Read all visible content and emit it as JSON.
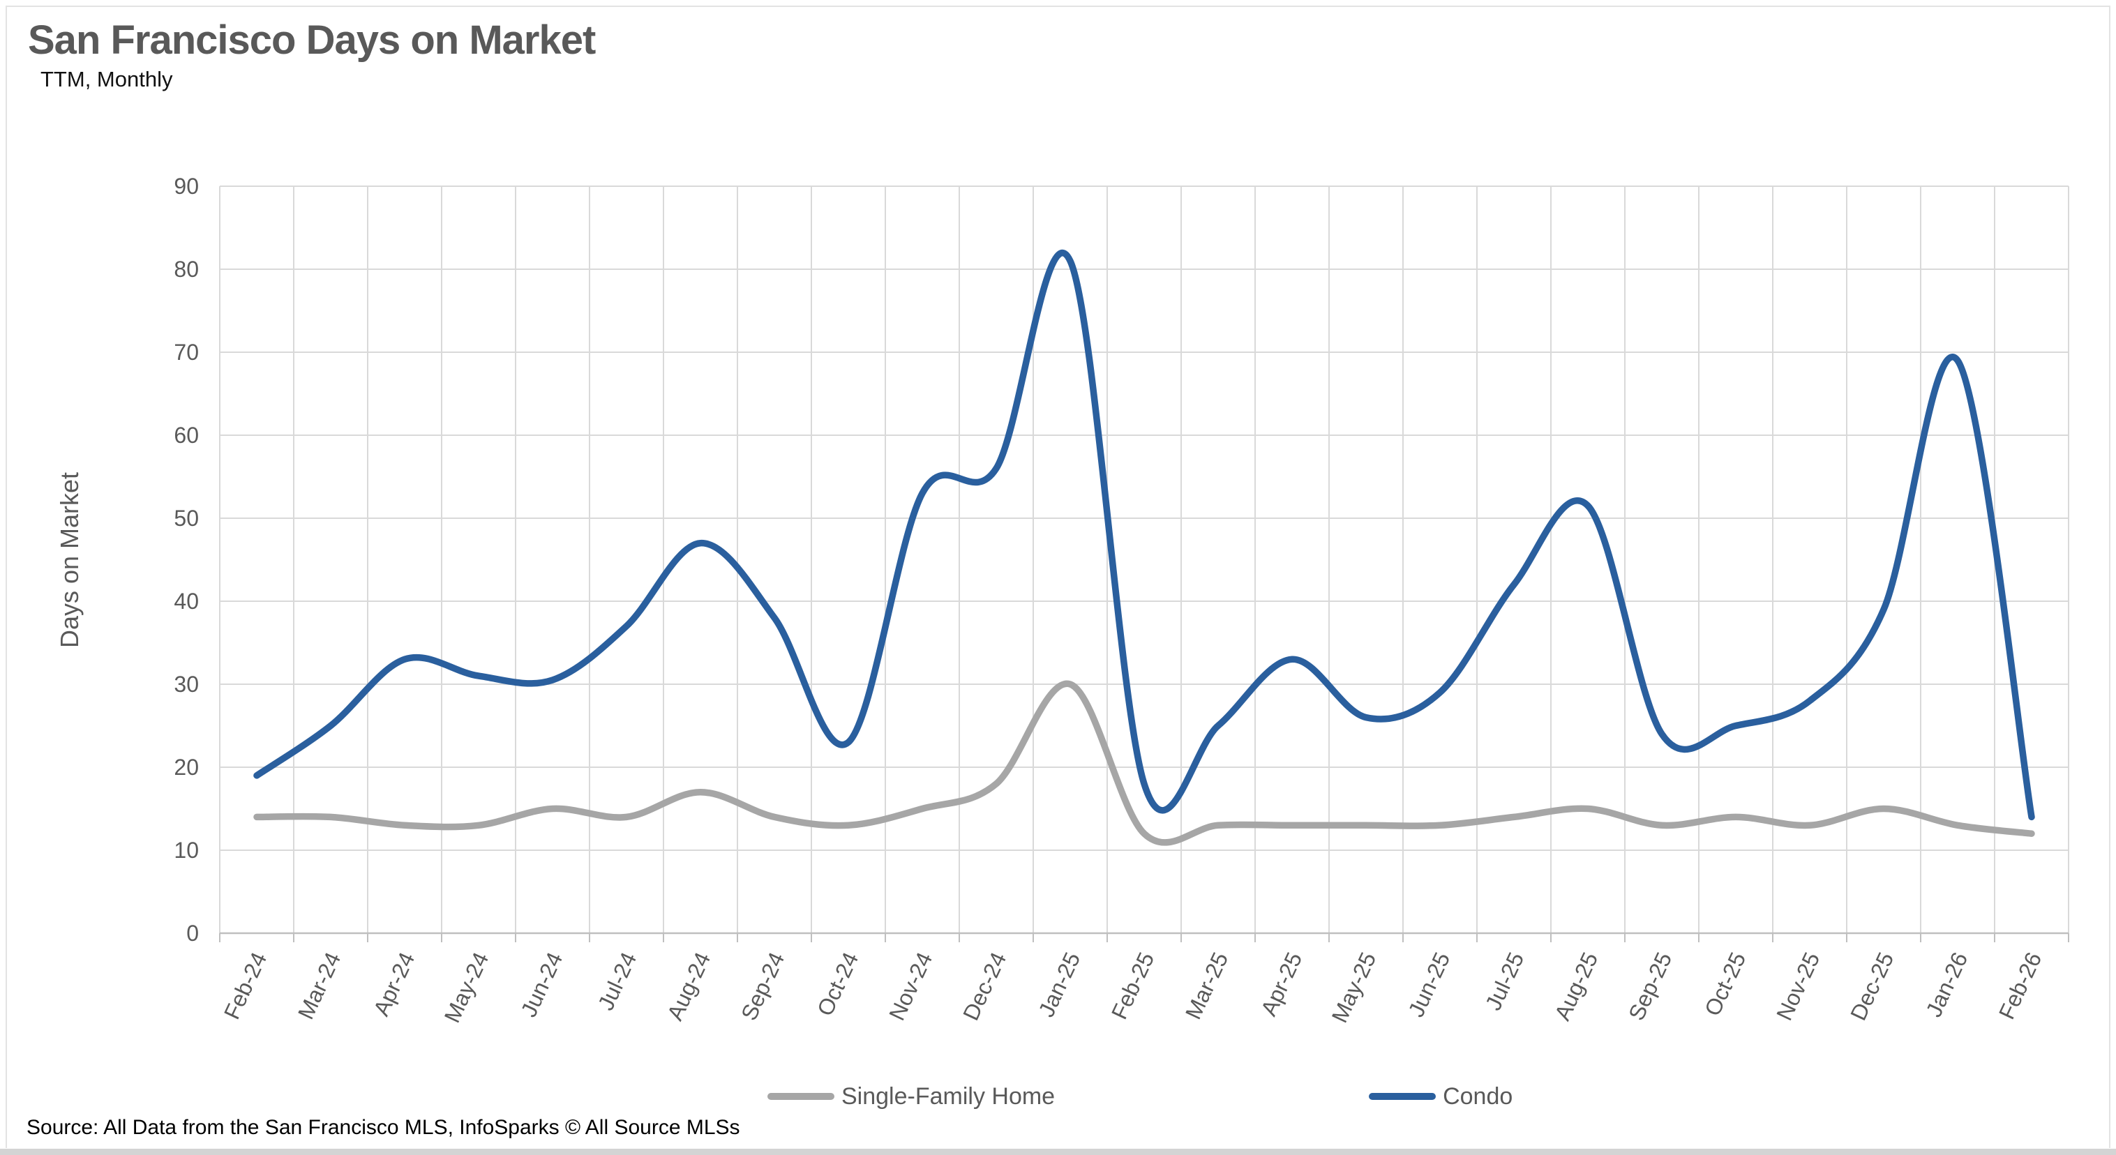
{
  "page": {
    "title": "San Francisco Days on Market",
    "subtitle": "TTM, Monthly",
    "source": "Source: All Data from the San Francisco MLS, InfoSparks © All Source MLSs"
  },
  "legend": {
    "items": [
      {
        "label": "Single-Family Home",
        "color": "#a6a6a6"
      },
      {
        "label": "Condo",
        "color": "#2a5f9e"
      }
    ]
  },
  "colors": {
    "condo_line": "#2a5f9e",
    "sfh_line": "#a6a6a6",
    "gridline": "#d9d9d9",
    "axis_line": "#bfbfbf",
    "axis_text": "#595959",
    "title_text": "#595959"
  },
  "chart_data": {
    "type": "line",
    "title": "San Francisco Days on Market",
    "subtitle": "TTM, Monthly",
    "xlabel": "",
    "ylabel": "Days on Market",
    "ylim": [
      0,
      90
    ],
    "ytick_interval": 10,
    "yticks": [
      0,
      10,
      20,
      30,
      40,
      50,
      60,
      70,
      80,
      90
    ],
    "grid": true,
    "legend_position": "bottom",
    "line_style": "smooth",
    "categories": [
      "Feb-24",
      "Mar-24",
      "Apr-24",
      "May-24",
      "Jun-24",
      "Jul-24",
      "Aug-24",
      "Sep-24",
      "Oct-24",
      "Nov-24",
      "Dec-24",
      "Jan-25",
      "Feb-25",
      "Mar-25",
      "Apr-25",
      "May-25",
      "Jun-25",
      "Jul-25",
      "Aug-25",
      "Sep-25",
      "Oct-25",
      "Nov-25",
      "Dec-25",
      "Jan-26",
      "Feb-26"
    ],
    "series": [
      {
        "name": "Single-Family Home",
        "color": "#a6a6a6",
        "values": [
          14,
          14,
          13,
          13,
          15,
          14,
          17,
          14,
          13,
          15,
          18,
          30,
          12,
          13,
          13,
          13,
          13,
          14,
          15,
          13,
          14,
          13,
          15,
          13,
          12
        ]
      },
      {
        "name": "Condo",
        "color": "#2a5f9e",
        "values": [
          19,
          25,
          33,
          31,
          30.5,
          37,
          47,
          38,
          23,
          53,
          56,
          81,
          18,
          25,
          33,
          26,
          29,
          42,
          51.5,
          24,
          25,
          28,
          39,
          69,
          14
        ]
      }
    ]
  }
}
